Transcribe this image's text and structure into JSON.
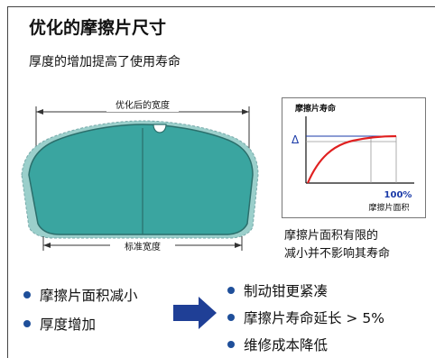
{
  "title": "优化的摩擦片尺寸",
  "subtitle": "厚度的增加提高了使用寿命",
  "pad_diagram": {
    "optimized_width_label": "优化后的宽度",
    "standard_width_label": "标准宽度",
    "pad_color": "#3aa5a0"
  },
  "life_chart": {
    "ylabel": "摩擦片寿命",
    "delta_label": "Δ",
    "x_tick_label": "100%",
    "xlabel": "摩擦片面积",
    "curve_color": "#e02020",
    "guide_color": "#1a3aa8"
  },
  "note": {
    "line1": "摩擦片面积有限的",
    "line2": "减小并不影响其寿命"
  },
  "changes": [
    "摩擦片面积减小",
    "厚度增加"
  ],
  "effects": [
    "制动钳更紧凑",
    "摩擦片寿命延长 > 5%",
    "维修成本降低"
  ],
  "colors": {
    "bullet": "#1f4f9a",
    "arrow": "#1f3f96"
  }
}
